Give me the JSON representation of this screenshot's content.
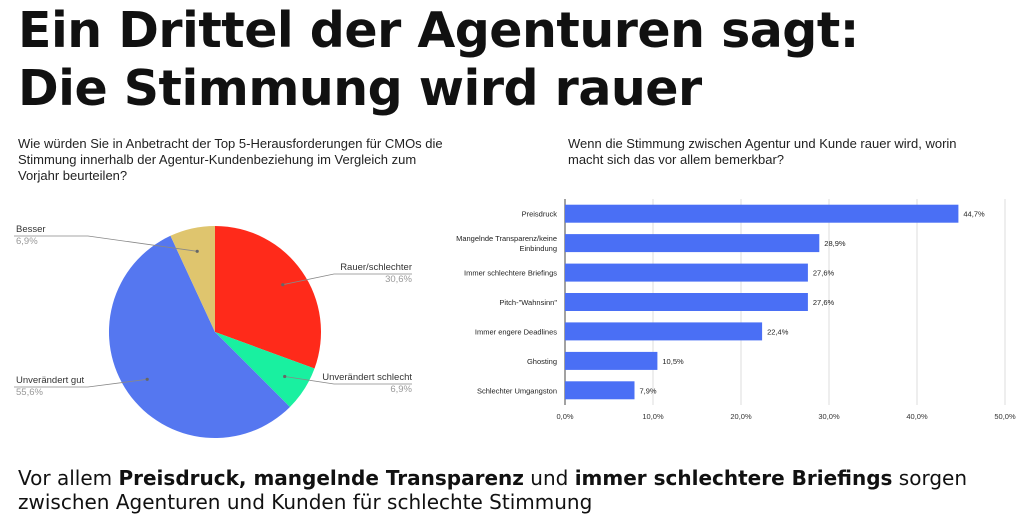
{
  "headline": {
    "line1": "Ein Drittel der Agenturen sagt:",
    "line2": "Die Stimmung wird rauer"
  },
  "left_question": "Wie würden Sie in Anbetracht der Top 5-Herausforderungen für CMOs die Stimmung innerhalb der Agentur-Kundenbeziehung im Vergleich zum Vorjahr beurteilen?",
  "right_question": "Wenn die Stimmung zwischen Agentur und Kunde rauer wird, worin macht sich das vor allem bemerkbar?",
  "footer": {
    "t1": "Vor allem ",
    "b1": "Preisdruck, mangelnde Transparenz",
    "t2": " und ",
    "b2": "immer schlechtere Briefings",
    "t3": " sorgen zwischen Agenturen und Kunden für schlechte Stimmung"
  },
  "chart_data": [
    {
      "type": "pie",
      "slices": [
        {
          "label": "Rauer/schlechter",
          "value": 30.6,
          "value_label": "30,6%",
          "color": "#ff2a1a"
        },
        {
          "label": "Unverändert schlecht",
          "value": 6.9,
          "value_label": "6,9%",
          "color": "#19f0a0"
        },
        {
          "label": "Unverändert gut",
          "value": 55.6,
          "value_label": "55,6%",
          "color": "#5577f0"
        },
        {
          "label": "Besser",
          "value": 6.9,
          "value_label": "6,9%",
          "color": "#dfc56e"
        }
      ]
    },
    {
      "type": "bar",
      "orientation": "horizontal",
      "bar_color": "#4a6ff5",
      "categories": [
        "Preisdruck",
        "Mangelnde Transparenz/keine Einbindung",
        "Immer schlechtere Briefings",
        "Pitch-\"Wahnsinn\"",
        "Immer engere Deadlines",
        "Ghosting",
        "Schlechter Umgangston"
      ],
      "category_lines": [
        [
          "Preisdruck"
        ],
        [
          "Mangelnde Transparenz/keine",
          "Einbindung"
        ],
        [
          "Immer schlechtere Briefings"
        ],
        [
          "Pitch-\"Wahnsinn\""
        ],
        [
          "Immer engere Deadlines"
        ],
        [
          "Ghosting"
        ],
        [
          "Schlechter Umgangston"
        ]
      ],
      "values": [
        44.7,
        28.9,
        27.6,
        27.6,
        22.4,
        10.5,
        7.9
      ],
      "value_labels": [
        "44,7%",
        "28,9%",
        "27,6%",
        "27,6%",
        "22,4%",
        "10,5%",
        "7,9%"
      ],
      "xlim": [
        0,
        50
      ],
      "xticks": [
        0,
        10,
        20,
        30,
        40,
        50
      ],
      "xtick_labels": [
        "0,0%",
        "10,0%",
        "20,0%",
        "30,0%",
        "40,0%",
        "50,0%"
      ],
      "grid": true
    }
  ]
}
